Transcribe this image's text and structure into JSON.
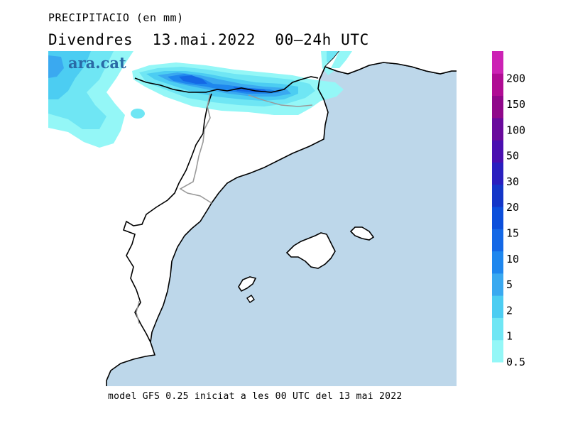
{
  "header": {
    "variable": "PRECIPITACIO (en mm)",
    "day": "Divendres",
    "date": "13.mai.2022",
    "period": "00–24h UTC"
  },
  "logo": "ara.cat",
  "footer": "model GFS 0.25 iniciat a les 00 UTC del 13 mai 2022",
  "legend": {
    "labels": [
      "0.5",
      "1",
      "2",
      "5",
      "10",
      "15",
      "20",
      "30",
      "50",
      "100",
      "150",
      "200"
    ],
    "colors": [
      "#94f7f7",
      "#6fe6f4",
      "#4ccdf2",
      "#3aa9f0",
      "#1f87ee",
      "#1468e6",
      "#0c4fdb",
      "#1436c8",
      "#2a1fbf",
      "#4a0fb0",
      "#6a0a9c",
      "#90088a",
      "#b00c94",
      "#cc22b4"
    ]
  },
  "colors": {
    "sea": "#bdd7ea",
    "land": "#ffffff",
    "coast": "#000000",
    "border": "#999999"
  }
}
